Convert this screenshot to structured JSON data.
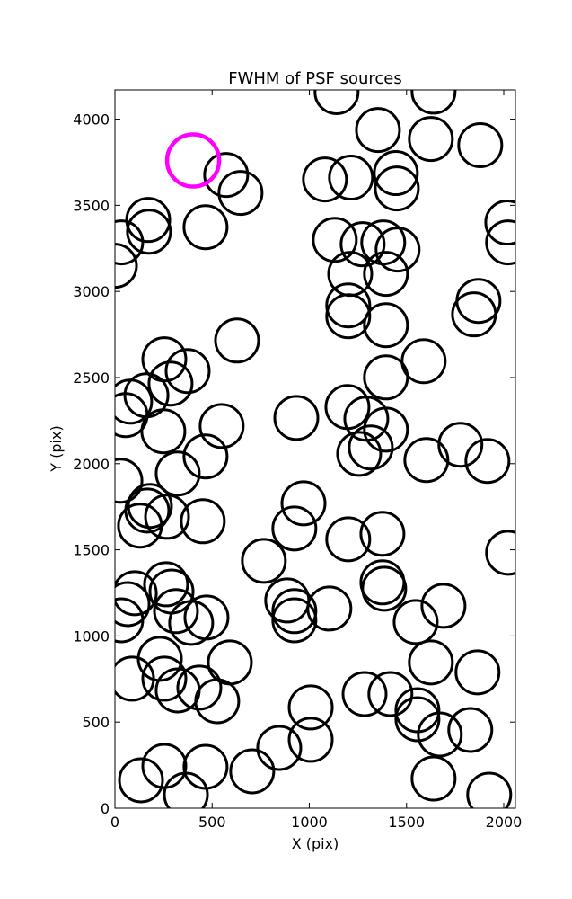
{
  "chart_data": {
    "type": "scatter",
    "title": "FWHM of PSF sources",
    "x_label": "X (pix)",
    "y_label": "Y (pix)",
    "xlim": [
      0,
      2060
    ],
    "ylim": [
      0,
      4170
    ],
    "xticks": [
      0,
      500,
      1000,
      1500,
      2000
    ],
    "yticks": [
      0,
      500,
      1000,
      1500,
      2000,
      2500,
      3000,
      3500,
      4000
    ],
    "series": [
      {
        "color": "#000000",
        "x": [
          1140,
          1639,
          1353,
          1625,
          1879,
          572,
          646,
          1080,
          1214,
          1445,
          1450,
          171,
          175,
          466,
          32,
          0,
          2018,
          2022,
          1131,
          1274,
          1380,
          1454,
          1210,
          1394,
          1200,
          1200,
          1870,
          1847,
          1394,
          628,
          254,
          374,
          286,
          1588,
          1394,
          162,
          78,
          55,
          1196,
          1293,
          933,
          549,
          1394,
          249,
          1777,
          1316,
          1256,
          466,
          1602,
          1916,
          28,
          323,
          970,
          180,
          166,
          268,
          452,
          129,
          923,
          1376,
          1200,
          766,
          2022,
          263,
          291,
          102,
          65,
          32,
          886,
          923,
          923,
          1103,
          1376,
          1385,
          1690,
          314,
          471,
          392,
          1547,
          88,
          231,
          591,
          1625,
          1865,
          254,
          434,
          323,
          526,
          1284,
          1417,
          1556,
          1007,
          1556,
          1671,
          1828,
          1007,
          845,
          254,
          466,
          706,
          134,
          1639,
          365,
          1925
        ],
        "y": [
          4157,
          4160,
          3937,
          3885,
          3849,
          3676,
          3572,
          3650,
          3661,
          3687,
          3598,
          3415,
          3347,
          3373,
          3285,
          3149,
          3400,
          3285,
          3300,
          3274,
          3285,
          3243,
          3102,
          3102,
          2919,
          2856,
          2945,
          2867,
          2804,
          2715,
          2606,
          2538,
          2465,
          2595,
          2501,
          2397,
          2360,
          2282,
          2329,
          2261,
          2266,
          2219,
          2198,
          2188,
          2110,
          2094,
          2057,
          2042,
          2021,
          2016,
          1901,
          1943,
          1770,
          1755,
          1728,
          1692,
          1666,
          1640,
          1624,
          1593,
          1561,
          1436,
          1483,
          1300,
          1258,
          1248,
          1185,
          1091,
          1206,
          1144,
          1091,
          1159,
          1311,
          1274,
          1175,
          1144,
          1107,
          1076,
          1081,
          752,
          867,
          846,
          846,
          789,
          752,
          700,
          684,
          621,
          663,
          663,
          569,
          585,
          517,
          428,
          454,
          397,
          350,
          245,
          240,
          214,
          162,
          172,
          78,
          78
        ]
      },
      {
        "color": "#ff00ff",
        "x": [
          402
        ],
        "y": [
          3760
        ]
      }
    ]
  }
}
